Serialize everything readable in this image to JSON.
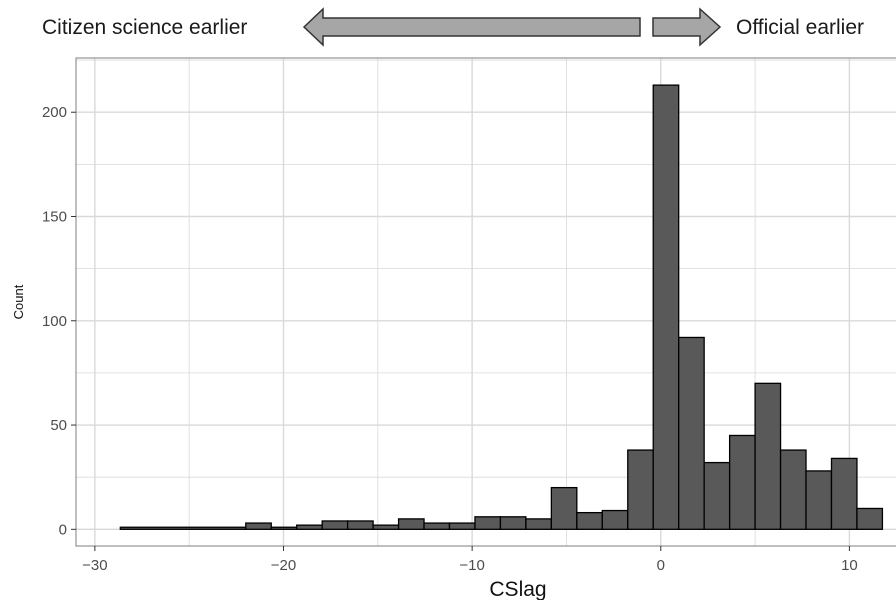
{
  "annotations": {
    "left_text": "Citizen science earlier",
    "right_text": "Official earlier"
  },
  "chart_data": {
    "type": "bar",
    "title": "",
    "xlabel": "CSlag",
    "ylabel": "Count",
    "xlim": [
      -31,
      13
    ],
    "ylim": [
      -8,
      226
    ],
    "x_ticks": [
      -30,
      -20,
      -10,
      0,
      10
    ],
    "x_tick_labels": [
      "−30",
      "−20",
      "−10",
      "0",
      "10"
    ],
    "y_ticks": [
      0,
      50,
      100,
      150,
      200
    ],
    "y_tick_labels": [
      "0",
      "50",
      "100",
      "150",
      "200"
    ],
    "grid": true,
    "bin_width": 1.35,
    "bins": [
      {
        "x0": -28.65,
        "x1": -22.0,
        "count": 1
      },
      {
        "x0": -22.0,
        "x1": -20.65,
        "count": 3
      },
      {
        "x0": -20.65,
        "x1": -19.3,
        "count": 1
      },
      {
        "x0": -19.3,
        "x1": -17.95,
        "count": 2
      },
      {
        "x0": -17.95,
        "x1": -16.6,
        "count": 4
      },
      {
        "x0": -16.6,
        "x1": -15.25,
        "count": 4
      },
      {
        "x0": -15.25,
        "x1": -13.9,
        "count": 2
      },
      {
        "x0": -13.9,
        "x1": -12.55,
        "count": 5
      },
      {
        "x0": -12.55,
        "x1": -11.2,
        "count": 3
      },
      {
        "x0": -11.2,
        "x1": -9.85,
        "count": 3
      },
      {
        "x0": -9.85,
        "x1": -8.5,
        "count": 6
      },
      {
        "x0": -8.5,
        "x1": -7.15,
        "count": 6
      },
      {
        "x0": -7.15,
        "x1": -5.8,
        "count": 5
      },
      {
        "x0": -5.8,
        "x1": -4.45,
        "count": 20
      },
      {
        "x0": -4.45,
        "x1": -3.1,
        "count": 8
      },
      {
        "x0": -3.1,
        "x1": -1.75,
        "count": 9
      },
      {
        "x0": -1.75,
        "x1": -0.4,
        "count": 38
      },
      {
        "x0": -0.4,
        "x1": 0.95,
        "count": 213
      },
      {
        "x0": 0.95,
        "x1": 2.3,
        "count": 92
      },
      {
        "x0": 2.3,
        "x1": 3.65,
        "count": 32
      },
      {
        "x0": 3.65,
        "x1": 5.0,
        "count": 45
      },
      {
        "x0": 5.0,
        "x1": 6.35,
        "count": 70
      },
      {
        "x0": 6.35,
        "x1": 7.7,
        "count": 38
      },
      {
        "x0": 7.7,
        "x1": 9.05,
        "count": 28
      },
      {
        "x0": 9.05,
        "x1": 10.4,
        "count": 34
      },
      {
        "x0": 10.4,
        "x1": 11.75,
        "count": 10
      }
    ],
    "colors": {
      "bar_fill": "#595959",
      "bar_stroke": "#000000",
      "grid": "#d9d9d9",
      "panel_border": "#7f7f7f",
      "arrow_fill": "#a6a6a6",
      "arrow_stroke": "#333333"
    }
  }
}
